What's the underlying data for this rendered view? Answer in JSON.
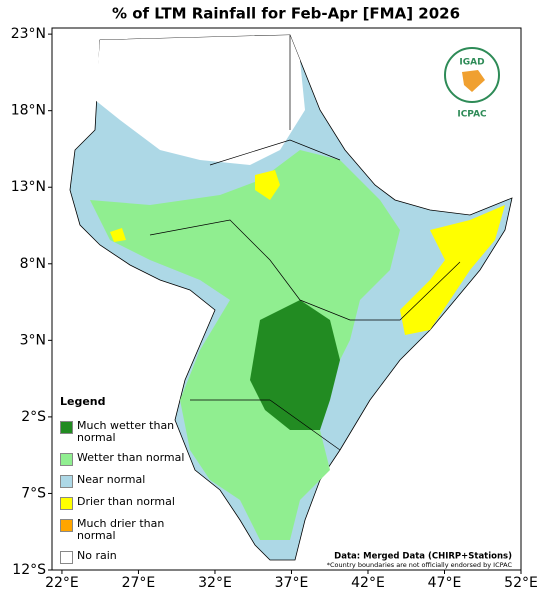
{
  "title": "% of LTM Rainfall for Feb-Apr [FMA] 2026",
  "map": {
    "xlim": [
      21.35,
      52
    ],
    "ylim": [
      -12,
      23.4
    ],
    "xticks": [
      {
        "value": 22,
        "label": "22°E"
      },
      {
        "value": 27,
        "label": "27°E"
      },
      {
        "value": 32,
        "label": "32°E"
      },
      {
        "value": 37,
        "label": "37°E"
      },
      {
        "value": 42,
        "label": "42°E"
      },
      {
        "value": 47,
        "label": "47°E"
      },
      {
        "value": 52,
        "label": "52°E"
      }
    ],
    "yticks": [
      {
        "value": 23,
        "label": "23°N"
      },
      {
        "value": 18,
        "label": "18°N"
      },
      {
        "value": 13,
        "label": "13°N"
      },
      {
        "value": 8,
        "label": "8°N"
      },
      {
        "value": 3,
        "label": "3°N"
      },
      {
        "value": -2,
        "label": "2°S"
      },
      {
        "value": -7,
        "label": "7°S"
      },
      {
        "value": -12,
        "label": "12°S"
      }
    ]
  },
  "legend": {
    "title": "Legend",
    "items": [
      {
        "label": "Much wetter than normal",
        "color": "#228b22"
      },
      {
        "label": "Wetter than normal",
        "color": "#90ee90"
      },
      {
        "label": "Near normal",
        "color": "#add8e6"
      },
      {
        "label": "Drier than normal",
        "color": "#ffff00"
      },
      {
        "label": "Much drier than normal",
        "color": "#ffa500"
      },
      {
        "label": "No rain",
        "color": "#ffffff"
      }
    ]
  },
  "source": "Data: Merged Data (CHIRP+Stations)",
  "note": "*Country boundaries are not officially endorsed by ICPAC",
  "logo": {
    "name": "IGAD",
    "org": "ICPAC"
  }
}
